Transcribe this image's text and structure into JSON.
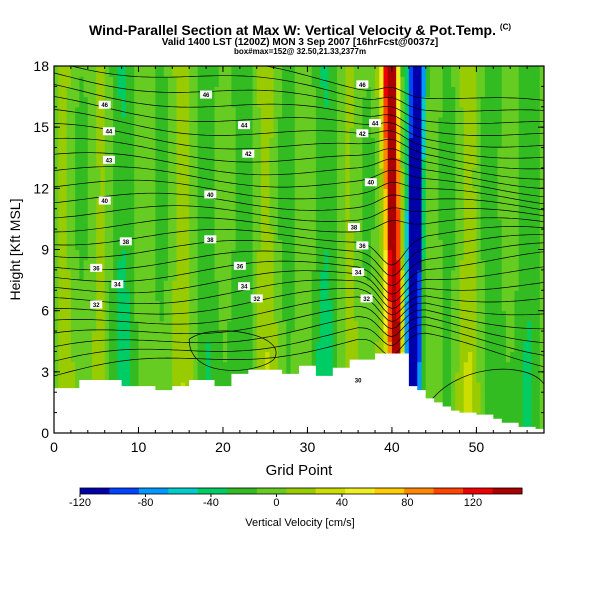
{
  "header": {
    "title": "Wind-Parallel Section at Max W: Vertical Velocity & Pot.Temp.",
    "copyright": "(C)",
    "subtitle": "Valid 1400 LST (1200Z) MON 3 Sep 2007 [16hrFcst@0037z]",
    "info": "box#max=152@ 32.50,21.33,2377m"
  },
  "chart_data": {
    "type": "heatmap",
    "xlabel": "Grid Point",
    "ylabel": "Height [Kft MSL]",
    "xlim": [
      0,
      58
    ],
    "ylim": [
      0,
      18
    ],
    "x_ticks": [
      "0",
      "10",
      "20",
      "30",
      "40",
      "50"
    ],
    "y_ticks": [
      "0",
      "3",
      "6",
      "9",
      "12",
      "15",
      "18"
    ],
    "colorbar": {
      "label": "Vertical Velocity [cm/s]",
      "range": [
        -120,
        150
      ],
      "tick_values": [
        -120,
        -80,
        -40,
        0,
        40,
        80,
        120
      ],
      "tick_labels": [
        "-120",
        "-80",
        "-40",
        "0",
        "40",
        "80",
        "120"
      ],
      "colors": [
        "#0000aa",
        "#0044ff",
        "#0099ff",
        "#00cccc",
        "#00cc66",
        "#33bb22",
        "#66cc22",
        "#99cc00",
        "#ccdd00",
        "#eeee22",
        "#ffcc00",
        "#ff8800",
        "#ff4400",
        "#ee0000",
        "#aa0000"
      ]
    },
    "updraft_axis_x": 40.5,
    "downdraft_axis_x": 42.5,
    "contour_labels": [
      {
        "text": "46",
        "x": 6,
        "y": 16.1
      },
      {
        "text": "44",
        "x": 6.5,
        "y": 14.8
      },
      {
        "text": "43",
        "x": 6.5,
        "y": 13.4
      },
      {
        "text": "40",
        "x": 6,
        "y": 11.4
      },
      {
        "text": "38",
        "x": 8.5,
        "y": 9.4
      },
      {
        "text": "36",
        "x": 5,
        "y": 8.1
      },
      {
        "text": "34",
        "x": 7.5,
        "y": 7.3
      },
      {
        "text": "32",
        "x": 5,
        "y": 6.3
      },
      {
        "text": "46",
        "x": 18,
        "y": 16.6
      },
      {
        "text": "44",
        "x": 22.5,
        "y": 15.1
      },
      {
        "text": "42",
        "x": 23,
        "y": 13.7
      },
      {
        "text": "40",
        "x": 18.5,
        "y": 11.7
      },
      {
        "text": "38",
        "x": 18.5,
        "y": 9.5
      },
      {
        "text": "36",
        "x": 22,
        "y": 8.2
      },
      {
        "text": "34",
        "x": 22.5,
        "y": 7.2
      },
      {
        "text": "32",
        "x": 24,
        "y": 6.6
      },
      {
        "text": "46",
        "x": 36.5,
        "y": 17.1
      },
      {
        "text": "44",
        "x": 38,
        "y": 15.2
      },
      {
        "text": "42",
        "x": 36.5,
        "y": 14.7
      },
      {
        "text": "40",
        "x": 37.5,
        "y": 12.3
      },
      {
        "text": "38",
        "x": 35.5,
        "y": 10.1
      },
      {
        "text": "36",
        "x": 36.5,
        "y": 9.2
      },
      {
        "text": "34",
        "x": 36,
        "y": 7.9
      },
      {
        "text": "32",
        "x": 37,
        "y": 6.6
      },
      {
        "text": "30",
        "x": 36,
        "y": 2.6
      }
    ],
    "terrain_heights": [
      2.2,
      2.2,
      2.2,
      2.6,
      2.6,
      2.6,
      2.6,
      2.6,
      2.3,
      2.3,
      2.3,
      2.3,
      2.1,
      2.1,
      2.3,
      2.3,
      2.6,
      2.6,
      2.6,
      2.3,
      2.3,
      2.9,
      2.9,
      3.1,
      3.1,
      3.1,
      3.1,
      2.9,
      2.9,
      3.3,
      3.3,
      2.8,
      2.8,
      3.2,
      3.2,
      3.6,
      3.6,
      3.6,
      3.9,
      3.9,
      3.9,
      3.9,
      2.3,
      2.1,
      1.7,
      1.5,
      1.3,
      1.1,
      1.0,
      1.0,
      0.9,
      0.9,
      0.7,
      0.5,
      0.5,
      0.3,
      0.3,
      0.2,
      0.2
    ]
  }
}
